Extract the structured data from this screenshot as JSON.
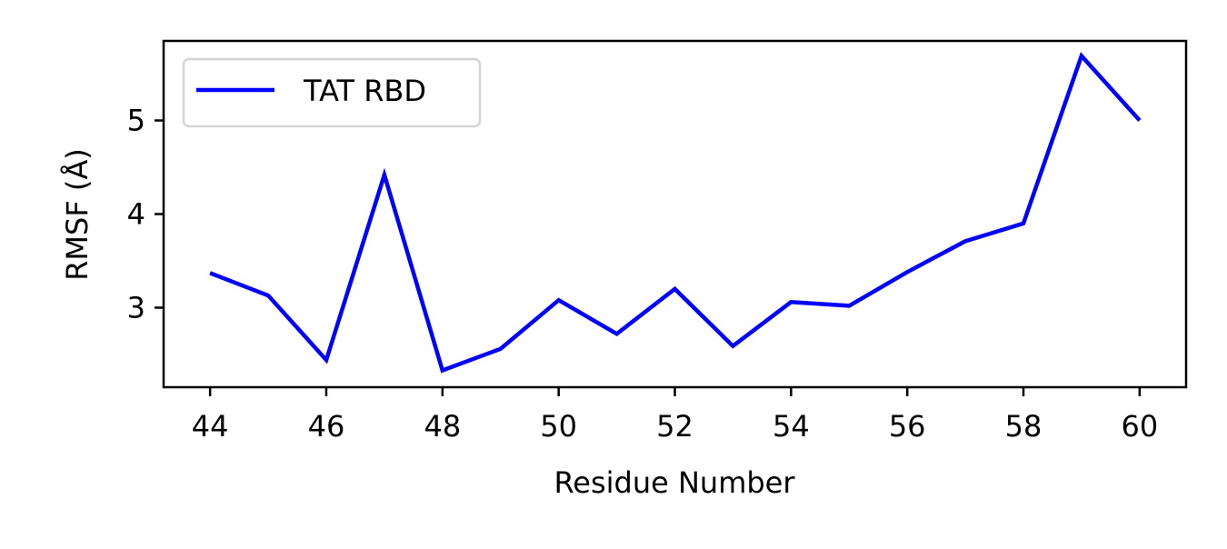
{
  "chart_data": {
    "type": "line",
    "title": "",
    "xlabel": "Residue Number",
    "ylabel": "RMSF (Å)",
    "xlim": [
      43.2,
      60.8
    ],
    "ylim": [
      2.15,
      5.85
    ],
    "xticks": [
      44,
      46,
      48,
      50,
      52,
      54,
      56,
      58,
      60
    ],
    "yticks": [
      3,
      4,
      5
    ],
    "grid": false,
    "legend_position": "top-left",
    "series": [
      {
        "name": "TAT RBD",
        "color": "#0000ff",
        "x": [
          44,
          45,
          46,
          47,
          48,
          49,
          50,
          51,
          52,
          53,
          54,
          55,
          56,
          57,
          58,
          59,
          60
        ],
        "y": [
          3.37,
          3.13,
          2.44,
          4.42,
          2.33,
          2.56,
          3.08,
          2.72,
          3.2,
          2.59,
          3.06,
          3.02,
          3.38,
          3.71,
          3.9,
          5.69,
          5.0
        ]
      }
    ]
  }
}
